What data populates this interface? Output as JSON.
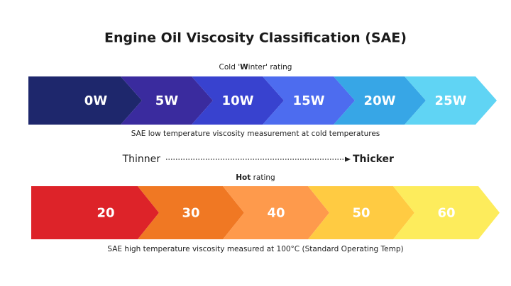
{
  "title": "Engine Oil Viscosity Classification (SAE)",
  "cold_label": {
    "before": "Cold '",
    "bold": "W",
    "after": "inter' rating"
  },
  "winter_grades": [
    "0W",
    "5W",
    "10W",
    "15W",
    "20W",
    "25W"
  ],
  "winter_caption": "SAE low temperature viscosity measurement at cold temperatures",
  "thinner": "Thinner",
  "thicker": "Thicker",
  "hot_label": {
    "bold": "Hot",
    "after": " rating"
  },
  "hot_grades": [
    "20",
    "30",
    "40",
    "50",
    "60"
  ],
  "hot_caption": "SAE high temperature viscosity measured at 100°C (Standard Operating Temp)"
}
